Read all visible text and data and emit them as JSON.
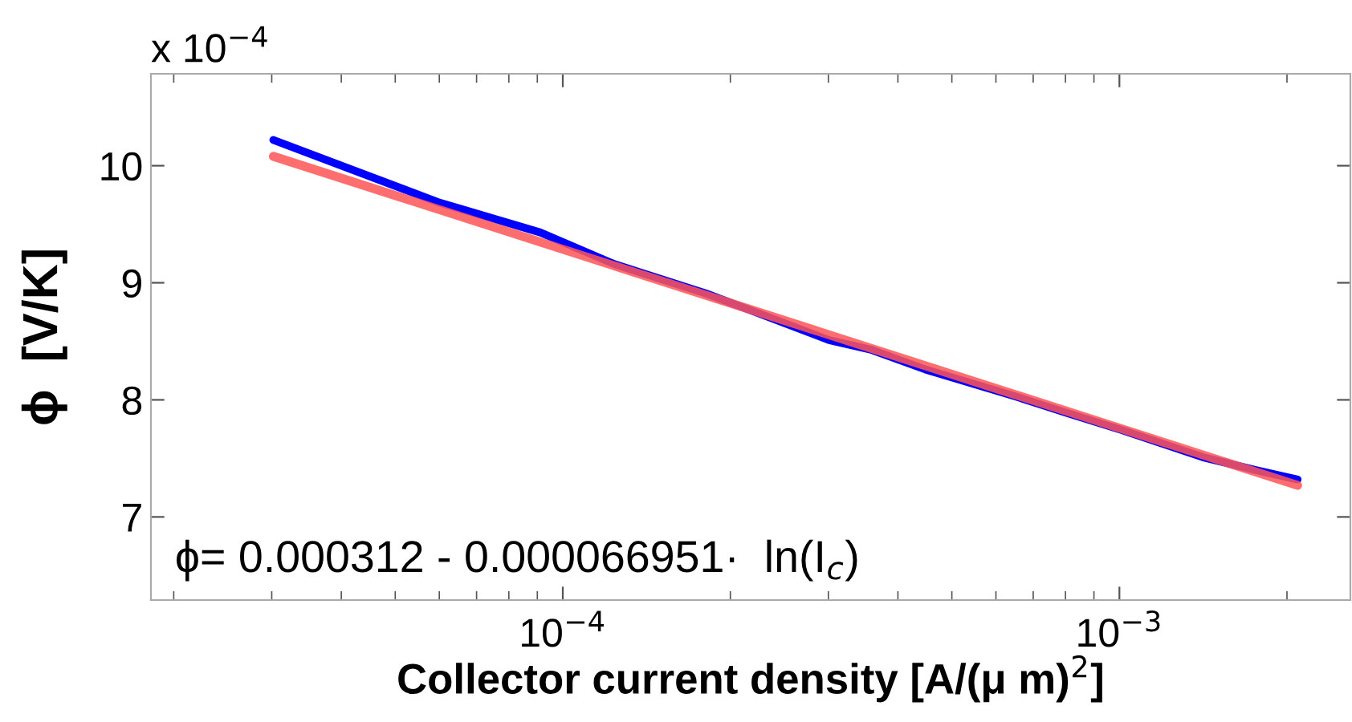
{
  "chart_data": {
    "type": "line",
    "xlabel": "Collector current density [A/(μ m)$^{2}$]",
    "ylabel": "ϕ  [V/K]",
    "annotations": [
      "x 10$^{−4}$",
      "ϕ= 0.000312 - 0.000066951·  ln(I$_{c}$)"
    ],
    "log": "x",
    "xlim": [
      1.82e-05,
      0.0026
    ],
    "xticks": [
      {
        "value": 0.0001,
        "label": "10$^{−4}$"
      },
      {
        "value": 0.001,
        "label": "10$^{−3}$"
      }
    ],
    "ylim": [
      6.29,
      10.785
    ],
    "yticks": [
      7,
      8,
      9,
      10
    ],
    "grid": false,
    "legend": false,
    "series": [
      {
        "color": "#0000ff",
        "x": [
          3.02e-05,
          5.96e-05,
          9.11e-05,
          0.0001237,
          0.0001805,
          0.000216,
          0.000301,
          0.000357,
          0.000448,
          0.00065,
          0.000814,
          0.001013,
          0.001412,
          0.001758,
          0.00209
        ],
        "values": [
          10.22,
          9.69,
          9.43,
          9.16,
          8.91,
          8.77,
          8.51,
          8.43,
          8.26,
          8.03,
          7.88,
          7.74,
          7.51,
          7.4,
          7.32
        ]
      },
      {
        "color": "#ff5555",
        "x": [
          3.02e-05,
          0.00209
        ],
        "values": [
          10.08,
          7.27
        ]
      }
    ]
  }
}
